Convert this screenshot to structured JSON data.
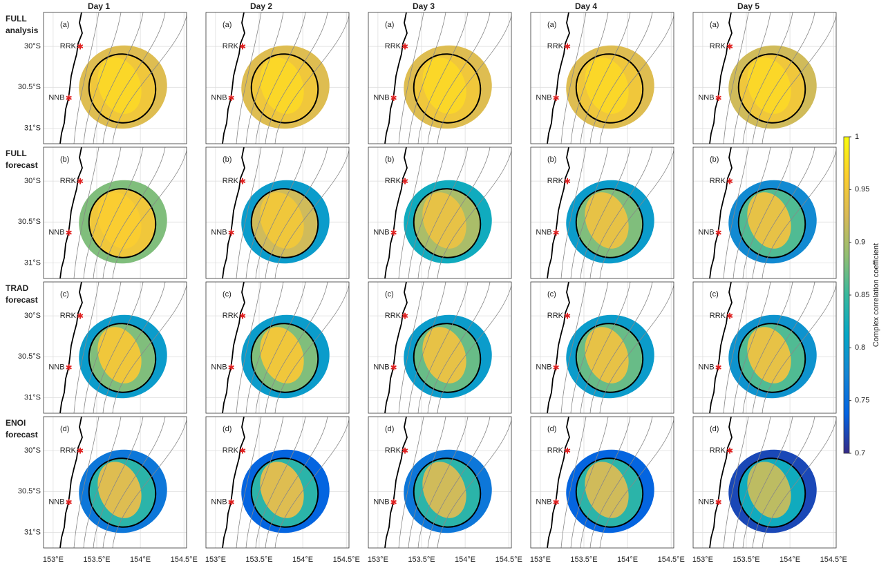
{
  "chart_data": {
    "type": "map-panels",
    "columns": [
      "Day 1",
      "Day 2",
      "Day 3",
      "Day 4",
      "Day 5"
    ],
    "rows": [
      {
        "title": [
          "FULL",
          "analysis"
        ],
        "letter": "(a)",
        "zones": [
          [
            0.93,
            0.95,
            0.97
          ],
          [
            0.93,
            0.95,
            0.97
          ],
          [
            0.93,
            0.95,
            0.97
          ],
          [
            0.93,
            0.95,
            0.97
          ],
          [
            0.92,
            0.95,
            0.97
          ]
        ]
      },
      {
        "title": [
          "FULL",
          "forecast"
        ],
        "letter": "(b)",
        "zones": [
          [
            0.88,
            0.95,
            0.96
          ],
          [
            0.8,
            0.92,
            0.95
          ],
          [
            0.82,
            0.9,
            0.94
          ],
          [
            0.8,
            0.88,
            0.94
          ],
          [
            0.78,
            0.86,
            0.94
          ]
        ]
      },
      {
        "title": [
          "TRAD",
          "forecast"
        ],
        "letter": "(c)",
        "zones": [
          [
            0.8,
            0.88,
            0.95
          ],
          [
            0.8,
            0.88,
            0.95
          ],
          [
            0.8,
            0.87,
            0.94
          ],
          [
            0.8,
            0.87,
            0.94
          ],
          [
            0.79,
            0.86,
            0.94
          ]
        ]
      },
      {
        "title": [
          "ENOI",
          "forecast"
        ],
        "letter": "(d)",
        "zones": [
          [
            0.76,
            0.84,
            0.93
          ],
          [
            0.74,
            0.84,
            0.93
          ],
          [
            0.76,
            0.84,
            0.92
          ],
          [
            0.74,
            0.84,
            0.92
          ],
          [
            0.72,
            0.82,
            0.91
          ]
        ]
      }
    ],
    "stations": [
      "RRK",
      "NNB"
    ],
    "xlim": [
      152.89,
      154.53
    ],
    "ylim": [
      -29.585,
      -31.19
    ],
    "xticks": [
      {
        "value": 153,
        "label": "153°E"
      },
      {
        "value": 153.5,
        "label": "153.5°E"
      },
      {
        "value": 154,
        "label": "154°E"
      },
      {
        "value": 154.5,
        "label": "154.5°E"
      }
    ],
    "yticks": [
      {
        "value": -30,
        "label": "30°S"
      },
      {
        "value": -30.5,
        "label": "30.5°S"
      },
      {
        "value": -31,
        "label": "31°S"
      }
    ],
    "grid": true,
    "colorbar": {
      "label": "Complex correlation coefficient",
      "clim": [
        0.7,
        1
      ],
      "ticks": [
        0.7,
        0.75,
        0.8,
        0.85,
        0.9,
        0.95,
        1
      ]
    }
  }
}
